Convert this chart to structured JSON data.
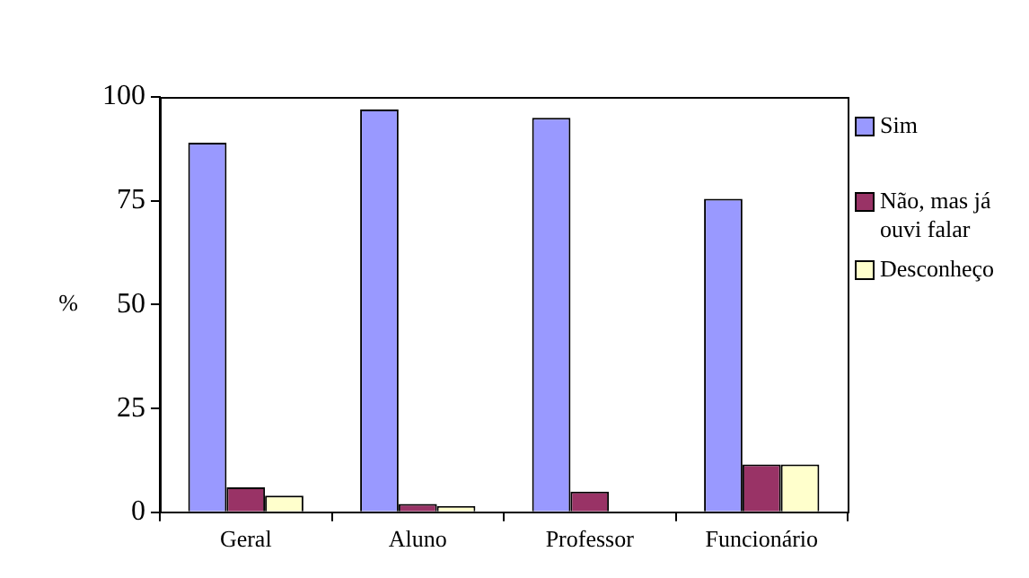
{
  "chart_data": {
    "type": "bar",
    "ylabel": "%",
    "categories": [
      "Geral",
      "Aluno",
      "Professor",
      "Funcionário"
    ],
    "series": [
      {
        "name": "Sim",
        "color": "#9999ff",
        "values": [
          89,
          97,
          95,
          75.5
        ]
      },
      {
        "name": "Não, mas já ouvi falar",
        "color": "#993366",
        "values": [
          6,
          2,
          5,
          11.5
        ]
      },
      {
        "name": "Desconheço",
        "color": "#ffffcc",
        "values": [
          4,
          1.5,
          0,
          11.5
        ]
      }
    ],
    "ylim": [
      0,
      100
    ],
    "yticks": [
      0,
      25,
      50,
      75,
      100
    ],
    "grid": false,
    "legend": "right"
  }
}
